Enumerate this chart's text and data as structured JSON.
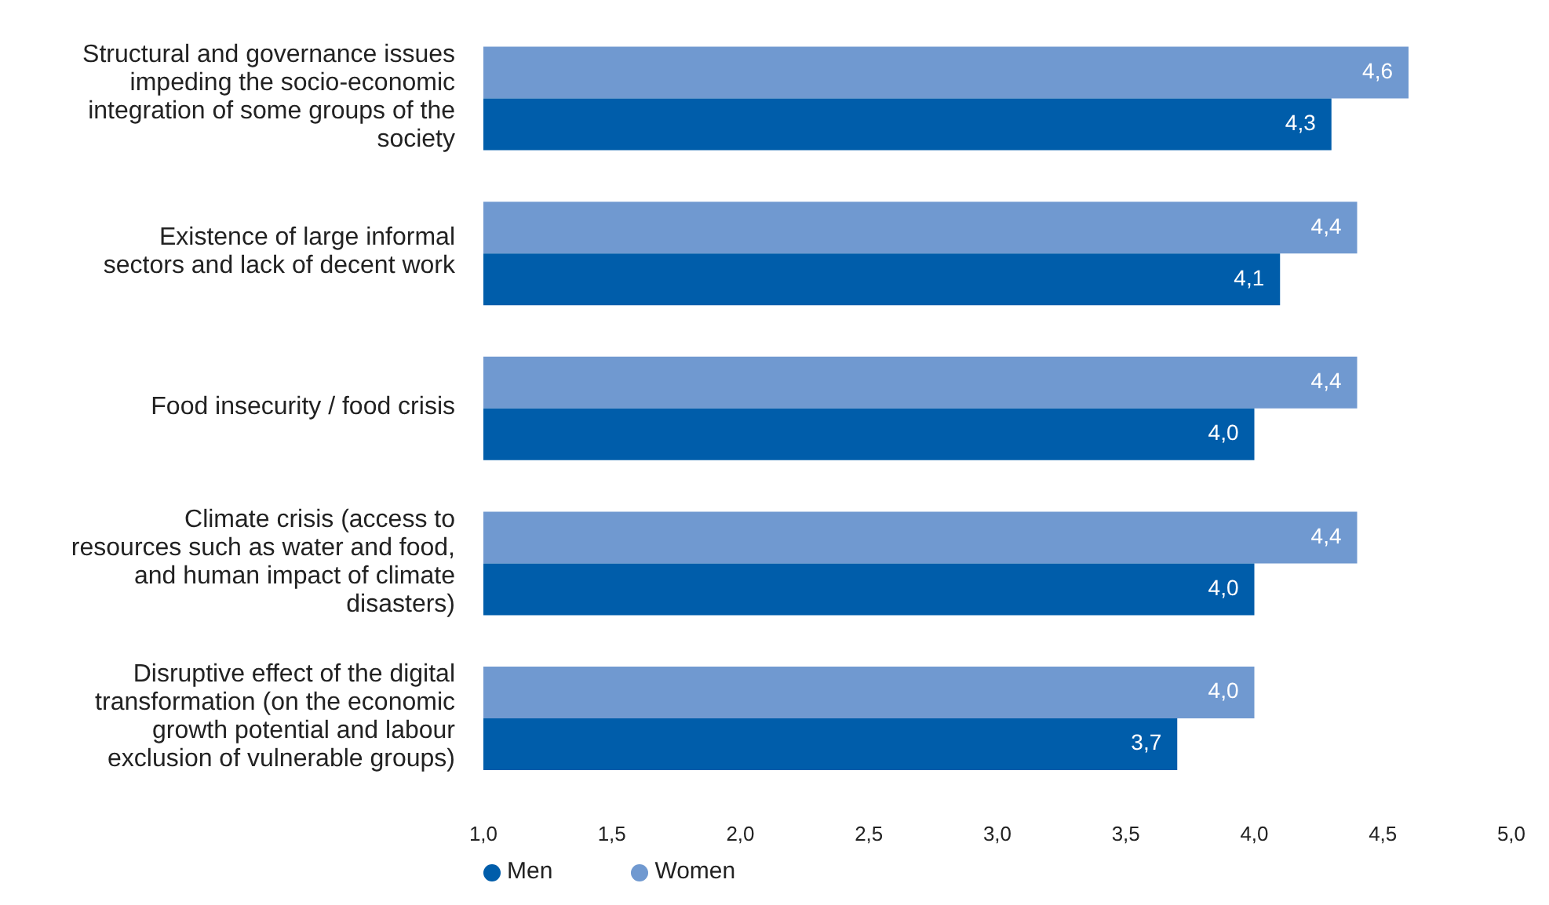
{
  "chart_data": {
    "type": "bar",
    "orientation": "horizontal",
    "categories": [
      "Structural and governance issues impeding the socio-economic integration of some groups of the society",
      "Existence of large informal sectors and lack of decent work",
      "Food insecurity / food crisis",
      "Climate crisis (access to resources such as water and food, and human impact of climate disasters)",
      "Disruptive effect of the digital transformation (on the economic growth potential and labour exclusion of vulnerable groups)"
    ],
    "series": [
      {
        "name": "Women",
        "color": "#7099d0",
        "values": [
          4.6,
          4.4,
          4.4,
          4.4,
          4.0
        ],
        "value_labels": [
          "4,6",
          "4,4",
          "4,4",
          "4,4",
          "4,0"
        ]
      },
      {
        "name": "Men",
        "color": "#005daa",
        "values": [
          4.3,
          4.1,
          4.0,
          4.0,
          3.7
        ],
        "value_labels": [
          "4,3",
          "4,1",
          "4,0",
          "4,0",
          "3,7"
        ]
      }
    ],
    "xlim": [
      1,
      5
    ],
    "xticks": [
      {
        "value": 1,
        "label": "1,0"
      },
      {
        "value": 1.5,
        "label": "1,5"
      },
      {
        "value": 2,
        "label": "2,0"
      },
      {
        "value": 2.5,
        "label": "2,5"
      },
      {
        "value": 3,
        "label": "3,0"
      },
      {
        "value": 3.5,
        "label": "3,5"
      },
      {
        "value": 4,
        "label": "4,0"
      },
      {
        "value": 4.5,
        "label": "4,5"
      },
      {
        "value": 5,
        "label": "5,0"
      }
    ],
    "grid": false,
    "legend": "bottom left"
  }
}
